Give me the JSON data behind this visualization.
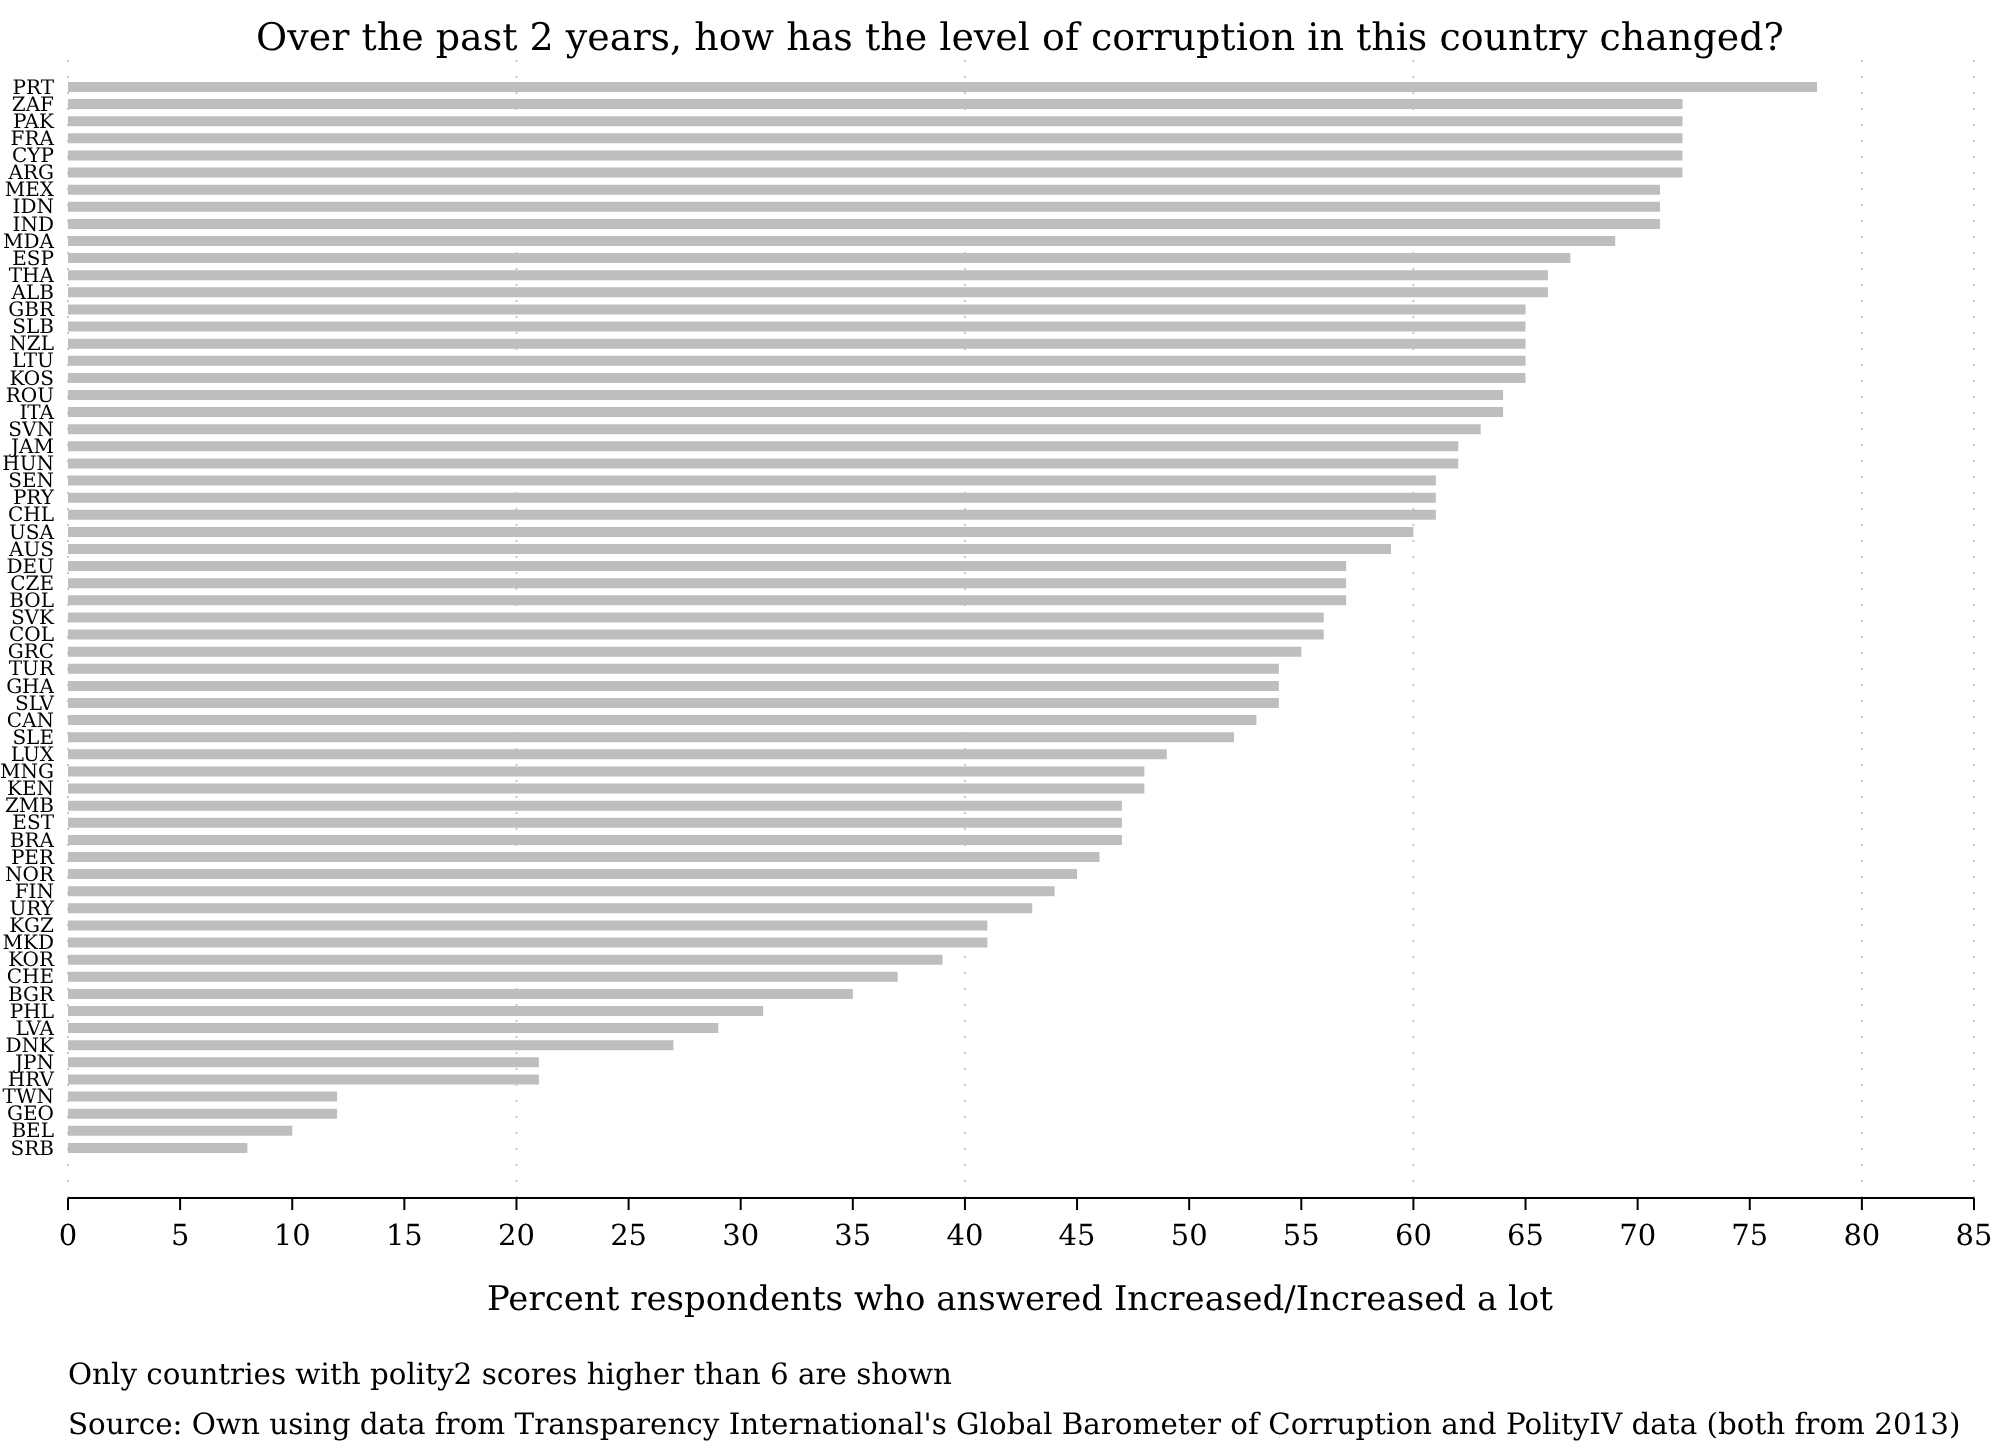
{
  "chart_data": {
    "type": "bar",
    "orientation": "horizontal",
    "title": "Over the past 2 years, how has the level of corruption in this country changed?",
    "xlabel": "Percent respondents who answered Increased/Increased a lot",
    "categories": [
      "PRT",
      "ZAF",
      "PAK",
      "FRA",
      "CYP",
      "ARG",
      "MEX",
      "IDN",
      "IND",
      "MDA",
      "ESP",
      "THA",
      "ALB",
      "GBR",
      "SLB",
      "NZL",
      "LTU",
      "KOS",
      "ROU",
      "ITA",
      "SVN",
      "JAM",
      "HUN",
      "SEN",
      "PRY",
      "CHL",
      "USA",
      "AUS",
      "DEU",
      "CZE",
      "BOL",
      "SVK",
      "COL",
      "GRC",
      "TUR",
      "GHA",
      "SLV",
      "CAN",
      "SLE",
      "LUX",
      "MNG",
      "KEN",
      "ZMB",
      "EST",
      "BRA",
      "PER",
      "NOR",
      "FIN",
      "URY",
      "KGZ",
      "MKD",
      "KOR",
      "CHE",
      "BGR",
      "PHL",
      "LVA",
      "DNK",
      "JPN",
      "HRV",
      "TWN",
      "GEO",
      "BEL",
      "SRB"
    ],
    "values": [
      78,
      72,
      72,
      72,
      72,
      72,
      71,
      71,
      71,
      69,
      67,
      66,
      66,
      65,
      65,
      65,
      65,
      65,
      64,
      64,
      63,
      62,
      62,
      61,
      61,
      61,
      60,
      59,
      57,
      57,
      57,
      56,
      56,
      55,
      54,
      54,
      54,
      53,
      52,
      49,
      48,
      48,
      47,
      47,
      47,
      46,
      45,
      44,
      43,
      41,
      41,
      39,
      37,
      35,
      31,
      29,
      27,
      21,
      21,
      12,
      12,
      10,
      8
    ],
    "color": "#bebebe",
    "xlim": [
      0,
      85
    ],
    "xticks": [
      0,
      5,
      10,
      15,
      20,
      25,
      30,
      35,
      40,
      45,
      50,
      55,
      60,
      65,
      70,
      75,
      80,
      85
    ],
    "grid": "x",
    "annotations": [
      "Only countries with polity2 scores higher than 6 are shown",
      "Source: Own using data from Transparency International's Global Barometer of Corruption and PolityIV data (both from 2013)"
    ]
  }
}
